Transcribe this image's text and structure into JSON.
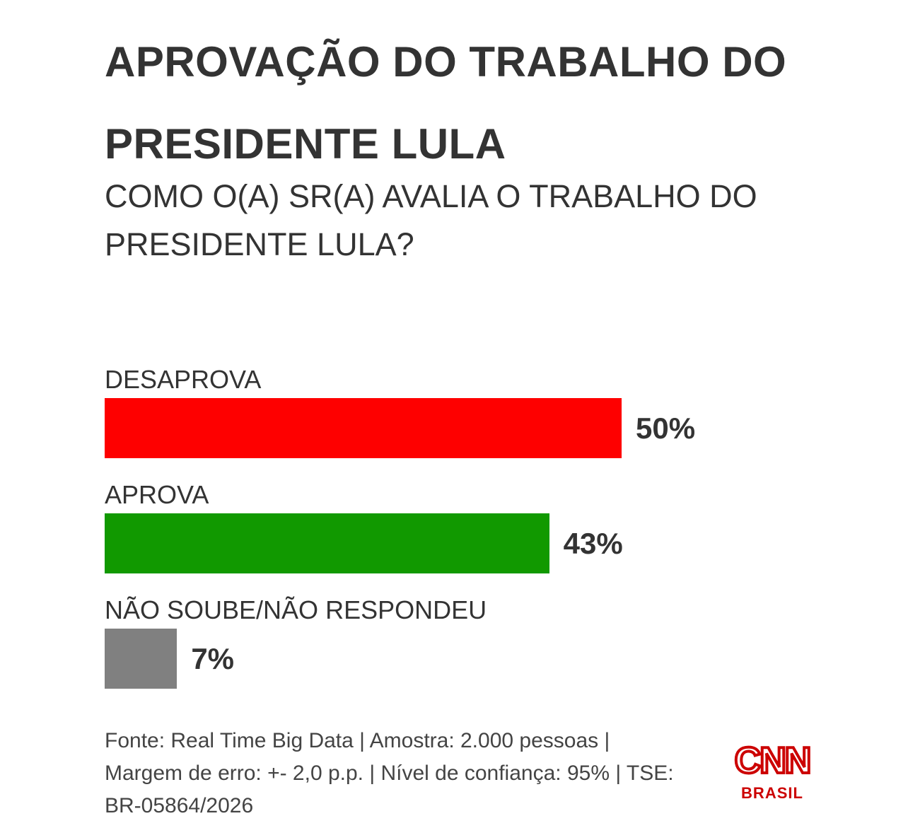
{
  "header": {
    "title": "APROVAÇÃO DO TRABALHO DO PRESIDENTE LULA",
    "subtitle": "COMO O(A) SR(A) AVALIA O TRABALHO DO PRESIDENTE LULA?"
  },
  "chart_data": {
    "type": "bar",
    "orientation": "horizontal",
    "title": "APROVAÇÃO DO TRABALHO DO PRESIDENTE LULA",
    "subtitle": "COMO O(A) SR(A) AVALIA O TRABALHO DO PRESIDENTE LULA?",
    "categories": [
      "DESAPROVA",
      "APROVA",
      "NÃO SOUBE/NÃO RESPONDEU"
    ],
    "values": [
      50,
      43,
      7
    ],
    "value_labels": [
      "50%",
      "43%",
      "7%"
    ],
    "unit": "%",
    "colors": [
      "#fe0000",
      "#119900",
      "#808080"
    ],
    "grid": false,
    "legend": "none"
  },
  "footer": {
    "source_line1": "Fonte: Real Time Big Data | Amostra: 2.000 pessoas |",
    "source_line2": "Margem de erro: +- 2,0 p.p. | Nível de confiança: 95% | TSE:",
    "source_line3": "BR-05864/2026"
  },
  "logo": {
    "brand": "CNN",
    "sub": "BRASIL",
    "color": "#cc0000"
  }
}
